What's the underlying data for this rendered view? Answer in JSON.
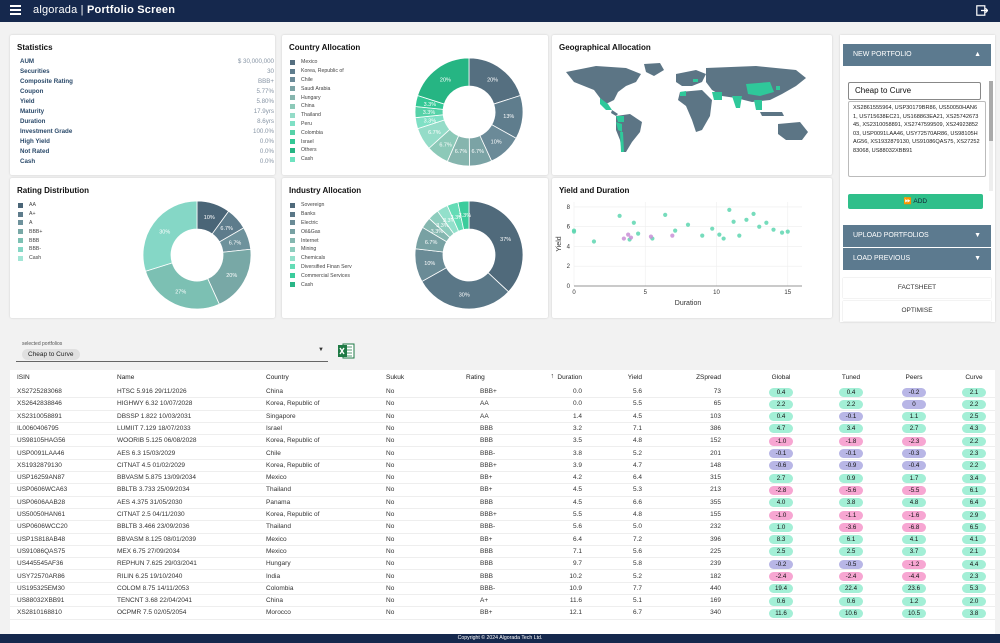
{
  "app": {
    "brand": "algorada",
    "title": "Portfolio Screen"
  },
  "statistics": {
    "title": "Statistics",
    "rows": [
      {
        "k": "AUM",
        "v": "$ 30,000,000"
      },
      {
        "k": "Securities",
        "v": "30"
      },
      {
        "k": "Composite Rating",
        "v": "BBB+"
      },
      {
        "k": "Coupon",
        "v": "5.77%"
      },
      {
        "k": "Yield",
        "v": "5.80%"
      },
      {
        "k": "Maturity",
        "v": "17.9yrs"
      },
      {
        "k": "Duration",
        "v": "8.6yrs"
      },
      {
        "k": "Investment Grade",
        "v": "100.0%"
      },
      {
        "k": "High Yield",
        "v": "0.0%"
      },
      {
        "k": "Not Rated",
        "v": "0.0%"
      },
      {
        "k": "Cash",
        "v": "0.0%"
      }
    ]
  },
  "country_allocation": {
    "title": "Country Allocation",
    "legend": [
      "Mexico",
      "Korea, Republic of",
      "Chile",
      "Saudi Arabia",
      "Hungary",
      "China",
      "Thailand",
      "Peru",
      "Colombia",
      "Israel",
      "Others",
      "Cash"
    ],
    "colors": [
      "#556f80",
      "#5f7d8d",
      "#6b8a98",
      "#7ba3a5",
      "#86b5ae",
      "#8cc9b8",
      "#94dcc8",
      "#7fe0c5",
      "#56d2a8",
      "#33c895",
      "#26b583",
      "#6fe3c0"
    ]
  },
  "geo_allocation": {
    "title": "Geographical Allocation"
  },
  "rating_distribution": {
    "title": "Rating Distribution",
    "legend": [
      "AA",
      "A+",
      "A",
      "BBB+",
      "BBB",
      "BBB-",
      "Cash"
    ],
    "colors": [
      "#4a6577",
      "#5e7c8c",
      "#6e929c",
      "#78a8a6",
      "#7cc0b3",
      "#85d7c6",
      "#a3e6d6"
    ]
  },
  "industry_allocation": {
    "title": "Industry Allocation",
    "legend": [
      "Sovereign",
      "Banks",
      "Electric",
      "Oil&Gas",
      "Internet",
      "Mining",
      "Chemicals",
      "Diversified Finan Serv",
      "Commercial Services",
      "Cash"
    ],
    "colors": [
      "#506a7b",
      "#5a7787",
      "#6a8b96",
      "#78a1a3",
      "#85b7b0",
      "#8ecdbe",
      "#93e0cb",
      "#64dcb6",
      "#3bcc9c",
      "#2ab687"
    ]
  },
  "yield_duration": {
    "title": "Yield and Duration"
  },
  "chart_data": [
    {
      "type": "pie",
      "title": "Country Allocation",
      "categories": [
        "Mexico",
        "Korea, Republic of",
        "Chile",
        "Saudi Arabia",
        "Hungary",
        "China",
        "Thailand",
        "Peru",
        "Colombia",
        "Israel",
        "Others",
        "Cash"
      ],
      "values": [
        20,
        13,
        10,
        6.7,
        6.7,
        6.7,
        6.7,
        3.3,
        3.3,
        3.3,
        20,
        0
      ],
      "labels": [
        "20%",
        "13%",
        "10%",
        "6.7%",
        "6.7%",
        "6.7%",
        "6.7%",
        "3.3%",
        "3.3%",
        "3.3%",
        "20%",
        ""
      ]
    },
    {
      "type": "pie",
      "title": "Rating Distribution",
      "categories": [
        "AA",
        "A+",
        "A",
        "BBB+",
        "BBB",
        "BBB-",
        "Cash"
      ],
      "values": [
        10,
        6.7,
        6.7,
        20,
        27,
        30,
        0
      ],
      "labels": [
        "10%",
        "6.7%",
        "6.7%",
        "20%",
        "27%",
        "30%",
        ""
      ]
    },
    {
      "type": "pie",
      "title": "Industry Allocation",
      "categories": [
        "Sovereign",
        "Banks",
        "Electric",
        "Oil&Gas",
        "Internet",
        "Mining",
        "Chemicals",
        "Diversified Finan Serv",
        "Commercial Services",
        "Cash"
      ],
      "values": [
        37,
        30,
        10,
        6.7,
        3.3,
        3.3,
        3.3,
        3.3,
        3.3,
        0
      ],
      "labels": [
        "37%",
        "30%",
        "10%",
        "6.7%",
        "3.3%",
        "3.3%",
        "3.3%",
        "3.3%",
        "3.3%",
        ""
      ]
    },
    {
      "type": "scatter",
      "title": "Yield and Duration",
      "xlabel": "Duration",
      "ylabel": "Yield",
      "xlim": [
        0,
        16
      ],
      "ylim": [
        0,
        8.5
      ],
      "xticks": [
        0,
        5,
        10,
        15
      ],
      "yticks": [
        0,
        2,
        4,
        6,
        8
      ],
      "series": [
        {
          "color": "#5ed6b0",
          "points": [
            [
              0.0,
              5.6
            ],
            [
              0.0,
              5.5
            ],
            [
              1.4,
              4.5
            ],
            [
              3.2,
              7.1
            ],
            [
              3.9,
              4.7
            ],
            [
              4.2,
              6.4
            ],
            [
              4.5,
              5.3
            ],
            [
              5.5,
              4.8
            ],
            [
              6.4,
              7.2
            ],
            [
              7.1,
              5.6
            ],
            [
              10.2,
              5.2
            ],
            [
              10.9,
              7.7
            ],
            [
              11.6,
              5.1
            ],
            [
              12.1,
              6.7
            ],
            [
              9.7,
              5.8
            ],
            [
              13.0,
              6.0
            ],
            [
              13.5,
              6.4
            ],
            [
              14.0,
              5.7
            ],
            [
              15.0,
              5.5
            ],
            [
              8.0,
              6.2
            ],
            [
              12.6,
              7.3
            ],
            [
              14.6,
              5.4
            ],
            [
              9.0,
              5.1
            ],
            [
              11.2,
              6.5
            ],
            [
              10.5,
              4.8
            ]
          ]
        },
        {
          "color": "#c98fd6",
          "points": [
            [
              3.5,
              4.8
            ],
            [
              3.8,
              5.2
            ],
            [
              4.0,
              4.9
            ],
            [
              6.9,
              5.1
            ],
            [
              5.4,
              5.0
            ]
          ]
        }
      ]
    }
  ],
  "right_panel": {
    "new_portfolio": "NEW PORTFOLIO",
    "portfolio_name": "Cheap to Curve",
    "isins": "XS2861555964, USP30179BR86, US50050HAN61, US715638EC21, US168863EA21, XS2574267345, XS2310058891, XS2747599509, XS2492385203, USP0091LAA46, USY72570AR86, US98105HAG56, XS1932879130, US91086QAS75, XS2725283068, US88032XBB91",
    "add": "ADD",
    "upload": "UPLOAD PORTFOLIOS",
    "load_previous": "LOAD PREVIOUS",
    "factsheet": "FACTSHEET",
    "optimise": "OPTIMISE"
  },
  "selector": {
    "label": "selected portfolios",
    "chip": "Cheap to Curve"
  },
  "table": {
    "headers": [
      "ISIN",
      "Name",
      "Country",
      "Sukuk",
      "Rating",
      "Duration",
      "Yield",
      "ZSpread",
      "Global",
      "Tuned",
      "Peers",
      "Curve"
    ],
    "rows": [
      [
        "XS2725283068",
        "HTSC 5.916 29/11/2026",
        "China",
        "No",
        "BBB+",
        "0.0",
        "5.6",
        "73",
        "0.4",
        "0.4",
        "-0.2",
        "2.1"
      ],
      [
        "XS2642838846",
        "HIGHWY 6.32 10/07/2028",
        "Korea, Republic of",
        "No",
        "AA",
        "0.0",
        "5.5",
        "65",
        "2.2",
        "2.2",
        "0",
        "2.2"
      ],
      [
        "XS2310058891",
        "DBSSP 1.822 10/03/2031",
        "Singapore",
        "No",
        "AA",
        "1.4",
        "4.5",
        "103",
        "0.4",
        "-0.1",
        "1.1",
        "2.5"
      ],
      [
        "IL0060406795",
        "LUMIIT 7.129 18/07/2033",
        "Israel",
        "No",
        "BBB",
        "3.2",
        "7.1",
        "386",
        "4.7",
        "3.4",
        "2.7",
        "4.3"
      ],
      [
        "US98105HAG56",
        "WOORIB 5.125 06/08/2028",
        "Korea, Republic of",
        "No",
        "BBB",
        "3.5",
        "4.8",
        "152",
        "-1.0",
        "-1.8",
        "-2.3",
        "2.2"
      ],
      [
        "USP0091LAA46",
        "AES 6.3 15/03/2029",
        "Chile",
        "No",
        "BBB-",
        "3.8",
        "5.2",
        "201",
        "-0.1",
        "-0.1",
        "-0.3",
        "2.3"
      ],
      [
        "XS1932879130",
        "CITNAT 4.5 01/02/2029",
        "Korea, Republic of",
        "No",
        "BBB+",
        "3.9",
        "4.7",
        "148",
        "-0.6",
        "-0.9",
        "-0.4",
        "2.2"
      ],
      [
        "USP16259AN87",
        "BBVASM 5.875 13/09/2034",
        "Mexico",
        "No",
        "BB+",
        "4.2",
        "6.4",
        "315",
        "2.7",
        "0.9",
        "1.7",
        "3.4"
      ],
      [
        "USP0606WCA63",
        "BBLTB 3.733 25/09/2034",
        "Thailand",
        "No",
        "BB+",
        "4.5",
        "5.3",
        "213",
        "-2.8",
        "-5.6",
        "-5.5",
        "6.1"
      ],
      [
        "USP0606AAB28",
        "AES 4.375 31/05/2030",
        "Panama",
        "No",
        "BBB",
        "4.5",
        "6.6",
        "355",
        "4.0",
        "3.8",
        "4.8",
        "6.4"
      ],
      [
        "US50050HAN61",
        "CITNAT 2.5 04/11/2030",
        "Korea, Republic of",
        "No",
        "BBB+",
        "5.5",
        "4.8",
        "155",
        "-1.0",
        "-1.1",
        "-1.6",
        "2.9"
      ],
      [
        "USP0606WCC20",
        "BBLTB 3.466 23/09/2036",
        "Thailand",
        "No",
        "BBB-",
        "5.6",
        "5.0",
        "232",
        "1.0",
        "-3.6",
        "-6.8",
        "6.5"
      ],
      [
        "USP1S818AB48",
        "BBVASM 8.125 08/01/2039",
        "Mexico",
        "No",
        "BB+",
        "6.4",
        "7.2",
        "396",
        "8.3",
        "6.1",
        "4.1",
        "4.1"
      ],
      [
        "US91086QAS75",
        "MEX 6.75 27/09/2034",
        "Mexico",
        "No",
        "BBB",
        "7.1",
        "5.6",
        "225",
        "2.5",
        "2.5",
        "3.7",
        "2.1"
      ],
      [
        "US445545AF36",
        "REPHUN 7.625 29/03/2041",
        "Hungary",
        "No",
        "BBB",
        "9.7",
        "5.8",
        "239",
        "-0.2",
        "-0.5",
        "-1.2",
        "4.4"
      ],
      [
        "USY72570AR86",
        "RILIN 6.25 19/10/2040",
        "India",
        "No",
        "BBB",
        "10.2",
        "5.2",
        "182",
        "-2.4",
        "-2.4",
        "-4.4",
        "2.3"
      ],
      [
        "US195325EM30",
        "COLOM 8.75 14/11/2053",
        "Colombia",
        "No",
        "BBB-",
        "10.9",
        "7.7",
        "440",
        "19.4",
        "22.4",
        "23.6",
        "5.3"
      ],
      [
        "US88032XBB91",
        "TENCNT 3.68 22/04/2041",
        "China",
        "No",
        "A+",
        "11.6",
        "5.1",
        "169",
        "0.6",
        "0.6",
        "1.2",
        "2.0"
      ],
      [
        "XS2810168810",
        "OCPMR 7.5 02/05/2054",
        "Morocco",
        "No",
        "BB+",
        "12.1",
        "6.7",
        "340",
        "11.6",
        "10.6",
        "10.5",
        "3.8"
      ]
    ]
  },
  "footer": {
    "text": "Copyright © 2024 Algorada Tech Ltd."
  }
}
